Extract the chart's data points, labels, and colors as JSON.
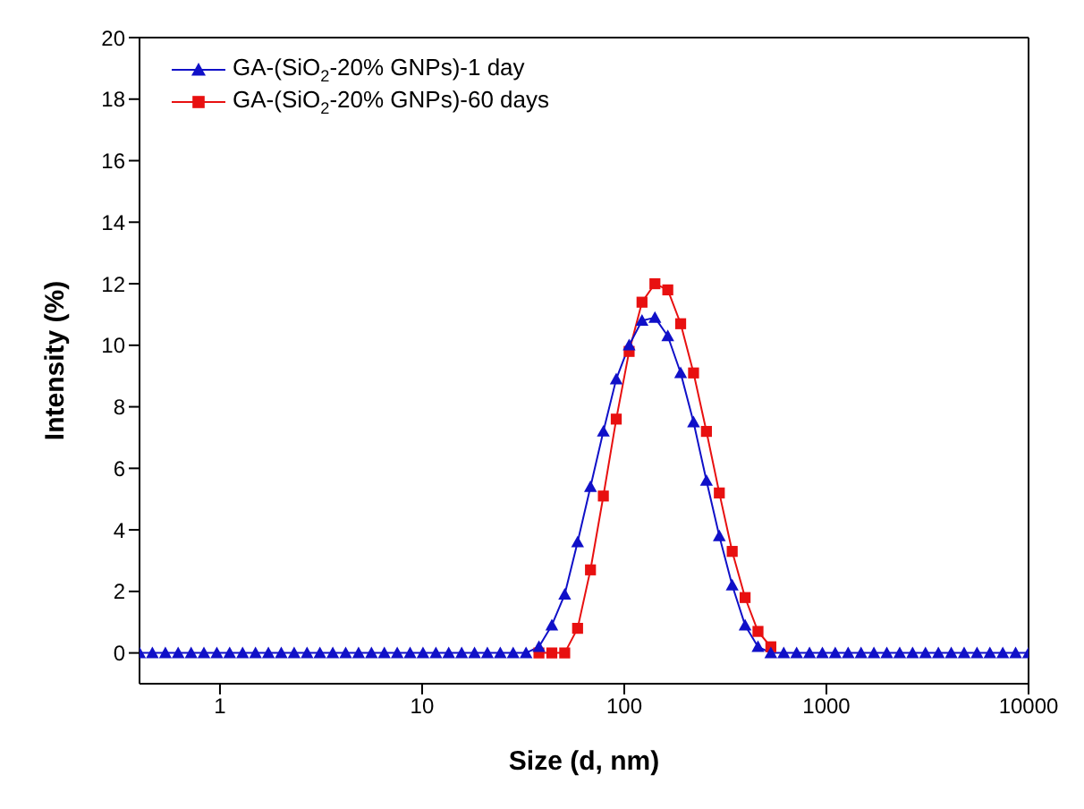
{
  "chart_data": {
    "type": "line",
    "xlabel": "Size (d, nm)",
    "ylabel": "Intensity  (%)",
    "log": "x",
    "x": [
      0.4,
      0.463,
      0.537,
      0.621,
      0.72,
      0.833,
      0.965,
      1.117,
      1.294,
      1.499,
      1.736,
      2.01,
      2.328,
      2.696,
      3.122,
      3.615,
      4.187,
      4.849,
      5.615,
      6.503,
      7.531,
      8.721,
      10.1,
      11.7,
      13.54,
      15.69,
      18.17,
      21.03,
      24.36,
      28.21,
      32.67,
      37.84,
      43.82,
      50.75,
      58.77,
      68.06,
      78.82,
      91.28,
      105.7,
      122.4,
      141.8,
      164.2,
      190.1,
      220.2,
      255,
      295.3,
      342,
      396.1,
      458.7,
      531.2,
      615.1,
      712.4,
      825,
      955.4,
      1106,
      1281,
      1484,
      1718,
      1990,
      2305,
      2669,
      3091,
      3580,
      4145,
      4801,
      5560,
      6439,
      7456,
      8630,
      10000
    ],
    "series": [
      {
        "name": "GA-(SiO$_{2}$-20% GNPs)-1 day",
        "color": "#1010c8",
        "marker": "triangle",
        "values": [
          0,
          0,
          0,
          0,
          0,
          0,
          0,
          0,
          0,
          0,
          0,
          0,
          0,
          0,
          0,
          0,
          0,
          0,
          0,
          0,
          0,
          0,
          0,
          0,
          0,
          0,
          0,
          0,
          0,
          0,
          0,
          0.2,
          0.9,
          1.9,
          3.6,
          5.4,
          7.2,
          8.9,
          10,
          10.8,
          10.9,
          10.3,
          9.1,
          7.5,
          5.6,
          3.8,
          2.2,
          0.9,
          0.2,
          0,
          0,
          0,
          0,
          0,
          0,
          0,
          0,
          0,
          0,
          0,
          0,
          0,
          0,
          0,
          0,
          0,
          0,
          0,
          0,
          0
        ]
      },
      {
        "name": "GA-(SiO$_{2}$-20% GNPs)-60 days",
        "color": "#e81010",
        "marker": "square",
        "values": [
          null,
          null,
          null,
          null,
          null,
          null,
          null,
          null,
          null,
          null,
          null,
          null,
          null,
          null,
          null,
          null,
          null,
          null,
          null,
          null,
          null,
          null,
          null,
          null,
          null,
          null,
          null,
          null,
          null,
          null,
          null,
          0,
          0,
          0,
          0.8,
          2.7,
          5.1,
          7.6,
          9.8,
          11.4,
          12,
          11.8,
          10.7,
          9.1,
          7.2,
          5.2,
          3.3,
          1.8,
          0.7,
          0.2,
          null,
          null,
          null,
          null,
          null,
          null,
          null,
          null,
          null,
          null,
          null,
          null,
          null,
          null,
          null,
          null,
          null,
          null,
          null,
          null
        ]
      }
    ],
    "xlim": [
      0.4,
      10000
    ],
    "xticks": [
      1,
      10,
      100,
      1000,
      10000
    ],
    "ylim": [
      -1,
      20
    ],
    "yticks": [
      0,
      2,
      4,
      6,
      8,
      10,
      12,
      14,
      16,
      18,
      20
    ],
    "grid": false,
    "legend": "top left"
  }
}
